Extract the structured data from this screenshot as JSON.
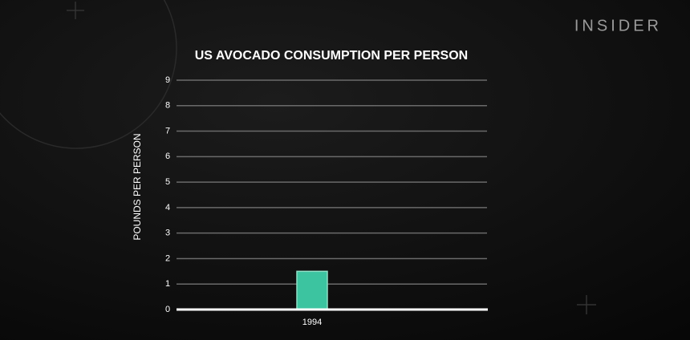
{
  "brand": "INSIDER",
  "chart_data": {
    "type": "bar",
    "title": "US AVOCADO CONSUMPTION PER PERSON",
    "y_label": "POUNDS PER PERSON",
    "categories": [
      "1994"
    ],
    "values": [
      1.5
    ],
    "color": "#3cc4a0",
    "ylim": [
      0,
      9
    ],
    "yticks": [
      0,
      1,
      2,
      3,
      4,
      5,
      6,
      7,
      8,
      9
    ],
    "grid": true
  }
}
